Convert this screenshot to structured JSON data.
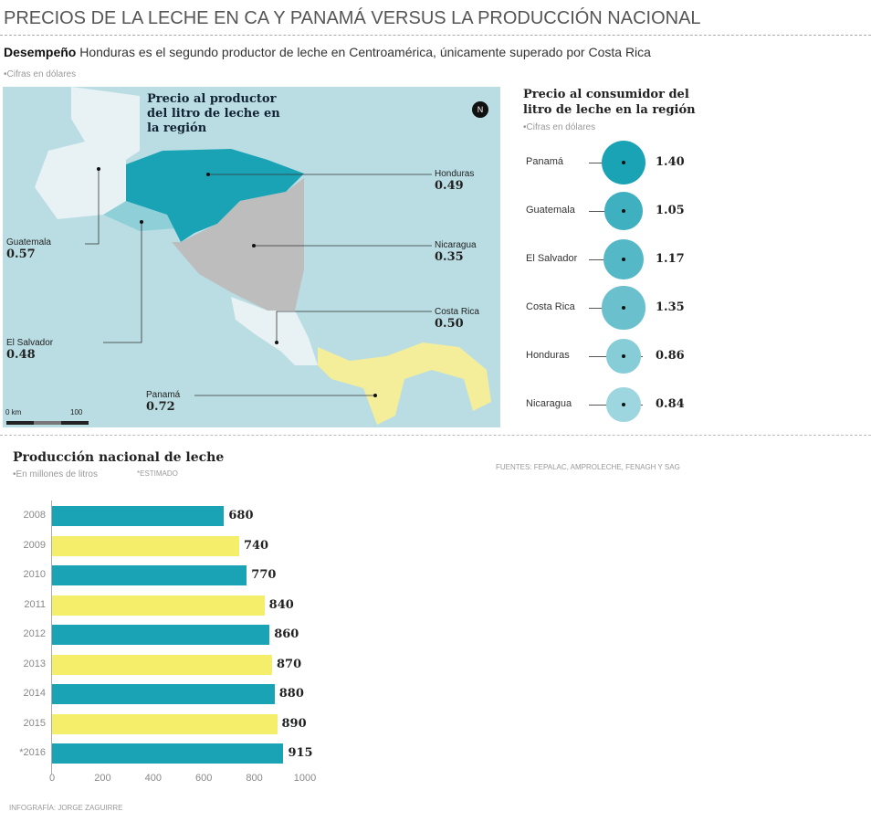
{
  "title": "PRECIOS DE LA LECHE EN CA Y PANAMÁ VERSUS LA PRODUCCIÓN NACIONAL",
  "subtitle": {
    "lead": "Desempeño",
    "text": "Honduras es el segundo productor de leche en Centroamérica, únicamente superado por Costa Rica"
  },
  "currency_note": "•Cifras en dólares",
  "map": {
    "title": "Precio al productor del litro de leche en la región",
    "north": "N",
    "scale": [
      "0 km",
      "100"
    ],
    "colors": {
      "sea": "#b9dde3",
      "honduras": "#1aa3b5",
      "el_salvador": "#8fcfd8",
      "nicaragua": "#bdbdbd",
      "costa_rica": "#e8f2f4",
      "panama": "#f4ee9a",
      "guatemala": "#e8f2f4"
    },
    "labels": [
      {
        "country": "Guatemala",
        "value": "0.57"
      },
      {
        "country": "El Salvador",
        "value": "0.48"
      },
      {
        "country": "Honduras",
        "value": "0.49"
      },
      {
        "country": "Nicaragua",
        "value": "0.35"
      },
      {
        "country": "Costa Rica",
        "value": "0.50"
      },
      {
        "country": "Panamá",
        "value": "0.72"
      }
    ]
  },
  "chart_data": [
    {
      "type": "bubble",
      "title": "Precio al consumidor del litro de leche en la región",
      "subtitle": "•Cifras en dólares",
      "categories": [
        "Panamá",
        "Guatemala",
        "El Salvador",
        "Costa Rica",
        "Honduras",
        "Nicaragua"
      ],
      "values": [
        1.4,
        1.05,
        1.17,
        1.35,
        0.86,
        0.84
      ],
      "labels": [
        "1.40",
        "1.05",
        "1.17",
        "1.35",
        "0.86",
        "0.84"
      ],
      "colors": [
        "#1aa3b5",
        "#3fb0c0",
        "#55b8c7",
        "#6ac1cd",
        "#86cdd7",
        "#9dd6de"
      ]
    },
    {
      "type": "bar",
      "orientation": "horizontal",
      "title": "Producción nacional de leche",
      "subtitle": "•En millones de litros",
      "note": "*ESTIMADO",
      "categories": [
        "2008",
        "2009",
        "2010",
        "2011",
        "2012",
        "2013",
        "2014",
        "2015",
        "*2016"
      ],
      "values": [
        680,
        740,
        770,
        840,
        860,
        870,
        880,
        890,
        915
      ],
      "xlim": [
        0,
        1000
      ],
      "xticks": [
        "0",
        "200",
        "400",
        "600",
        "800",
        "1000"
      ],
      "colors": [
        "#1aa3b5",
        "#f4ee6a"
      ]
    }
  ],
  "sources": "FUENTES: FEPALAC, AMPROLECHE, FENAGH Y SAG",
  "credit": "INFOGRAFÍA: JORGE ZAGUIRRE"
}
